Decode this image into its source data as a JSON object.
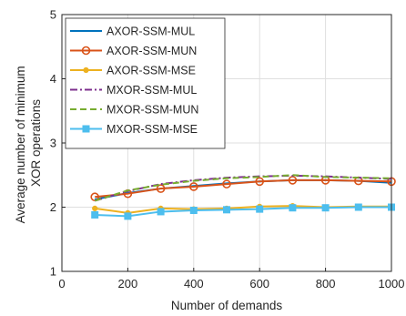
{
  "chart_data": {
    "type": "line",
    "xlabel": "Number of demands",
    "ylabel": [
      "Average number of minimum",
      "XOR operations"
    ],
    "xlim": [
      0,
      1000
    ],
    "ylim": [
      1,
      5
    ],
    "xticks": [
      "0",
      "200",
      "400",
      "600",
      "800",
      "1000"
    ],
    "yticks": [
      "1",
      "2",
      "3",
      "4",
      "5"
    ],
    "grid": true,
    "legend_position": "top-left",
    "x": [
      100,
      200,
      300,
      400,
      500,
      600,
      700,
      800,
      900,
      1000
    ],
    "series": [
      {
        "name": "AXOR-SSM-MUL",
        "color": "#0072BD",
        "dash": "solid",
        "marker": "none",
        "values": [
          2.12,
          2.22,
          2.29,
          2.33,
          2.37,
          2.4,
          2.42,
          2.42,
          2.41,
          2.38
        ]
      },
      {
        "name": "AXOR-SSM-MUN",
        "color": "#D95319",
        "dash": "solid",
        "marker": "circle",
        "values": [
          2.16,
          2.21,
          2.29,
          2.32,
          2.36,
          2.4,
          2.42,
          2.42,
          2.41,
          2.4
        ]
      },
      {
        "name": "AXOR-SSM-MSE",
        "color": "#EDB120",
        "dash": "solid",
        "marker": "dot",
        "values": [
          1.98,
          1.91,
          1.98,
          1.97,
          1.98,
          2.01,
          2.02,
          2.0,
          2.01,
          2.01
        ]
      },
      {
        "name": "MXOR-SSM-MUL",
        "color": "#7E2F8E",
        "dash": "dashdot",
        "marker": "none",
        "values": [
          2.1,
          2.25,
          2.36,
          2.42,
          2.46,
          2.48,
          2.49,
          2.48,
          2.46,
          2.44
        ]
      },
      {
        "name": "MXOR-SSM-MUN",
        "color": "#77AC30",
        "dash": "dashed",
        "marker": "none",
        "values": [
          2.1,
          2.26,
          2.35,
          2.41,
          2.45,
          2.47,
          2.5,
          2.47,
          2.46,
          2.45
        ]
      },
      {
        "name": "MXOR-SSM-MSE",
        "color": "#4DBEEE",
        "dash": "solid",
        "marker": "square",
        "values": [
          1.88,
          1.86,
          1.93,
          1.95,
          1.96,
          1.97,
          1.99,
          1.99,
          2.0,
          2.0
        ]
      }
    ]
  }
}
